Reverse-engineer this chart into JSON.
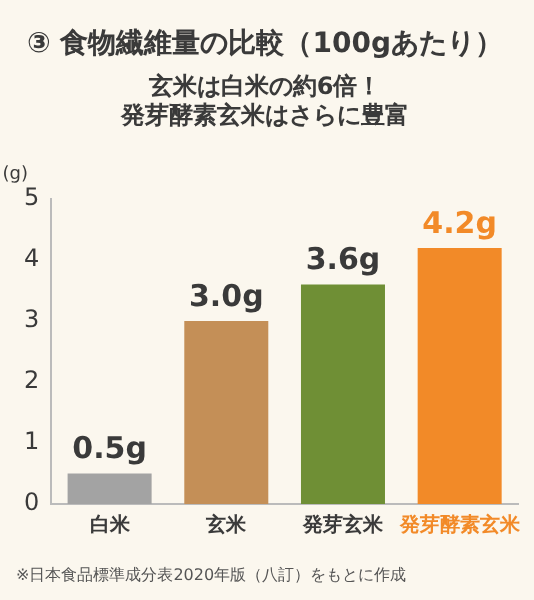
{
  "chart_data": {
    "type": "bar",
    "title": "③ 食物繊維量の比較（100gあたり）",
    "subtitle": "玄米は白米の約6倍！発芽酵素玄米はさらに豊富",
    "ylabel": "(g)",
    "categories": [
      "白米",
      "玄米",
      "発芽玄米",
      "発芽酵素玄米"
    ],
    "values": [
      0.5,
      3.0,
      3.6,
      4.2
    ],
    "value_labels": [
      "0.5g",
      "3.0g",
      "3.6g",
      "4.2g"
    ],
    "colors": [
      "#a3a3a3",
      "#c48f57",
      "#6f8f35",
      "#f28a28"
    ],
    "ylim": [
      0,
      5
    ],
    "yticks": [
      0,
      1,
      2,
      3,
      4,
      5
    ],
    "grid": false,
    "legend": false,
    "annotations": [
      "※日本食品標準成分表2020年版（八訂）をもとに作成"
    ]
  }
}
